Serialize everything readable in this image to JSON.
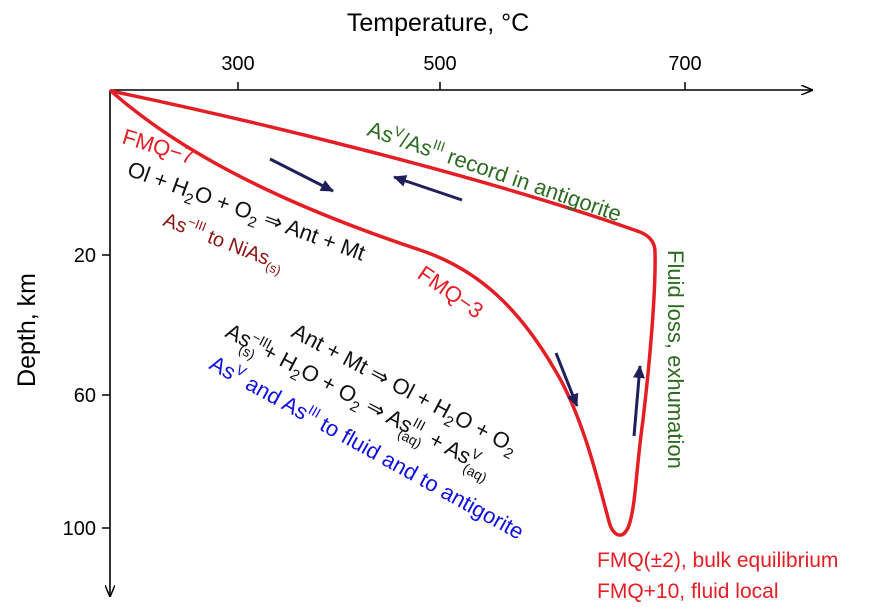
{
  "axes": {
    "x_title": "Temperature, °C",
    "x_ticks": [
      "300",
      "500",
      "700"
    ],
    "y_title": "Depth, km",
    "y_ticks": [
      "20",
      "60",
      "100"
    ]
  },
  "labels": {
    "fmq_minus7": "FMQ−7",
    "fmq_minus3": "FMQ−3",
    "asv_record": {
      "as1": "As",
      "sup1": "V",
      "sep": "/As",
      "sup2": "III",
      "rest": " record in antigorite"
    },
    "fluid_loss": "Fluid loss, exhumation",
    "fmq_bulk": "FMQ(±2), bulk equilibrium",
    "fmq_fluid": "FMQ+10, fluid local"
  },
  "reactions": {
    "r1": {
      "a": "Ol + H",
      "s1": "2",
      "b": "O + O",
      "s2": "2",
      "c": " ⇒  Ant + Mt"
    },
    "r1_note": {
      "a": "As",
      "sup": "−III",
      "b": " to NiAs",
      "sub": "(s)"
    },
    "r2": {
      "a": "Ant + Mt ⇒ Ol + H",
      "s1": "2",
      "b": "O + O",
      "s2": "2"
    },
    "r3": {
      "a": "As",
      "sup": "−III",
      "sub": "(s)",
      "b": " + H",
      "s1": "2",
      "c": "O + O",
      "s2": "2",
      "d": " ⇒ As",
      "sup2": "III",
      "sub2": "(aq)",
      "e": " + As",
      "sup3": "V",
      "sub3": "(aq)"
    },
    "r3_note": {
      "a": "As",
      "sup1": "V",
      "b": " and As",
      "sup2": "III",
      "c": " to fluid and to antigorite"
    }
  },
  "colors": {
    "path": "#e31e24",
    "arrows": "#1f1f5c",
    "green_text": "#2e6b22",
    "blue_text": "#1010e0",
    "dark_red_text": "#8b1313"
  }
}
